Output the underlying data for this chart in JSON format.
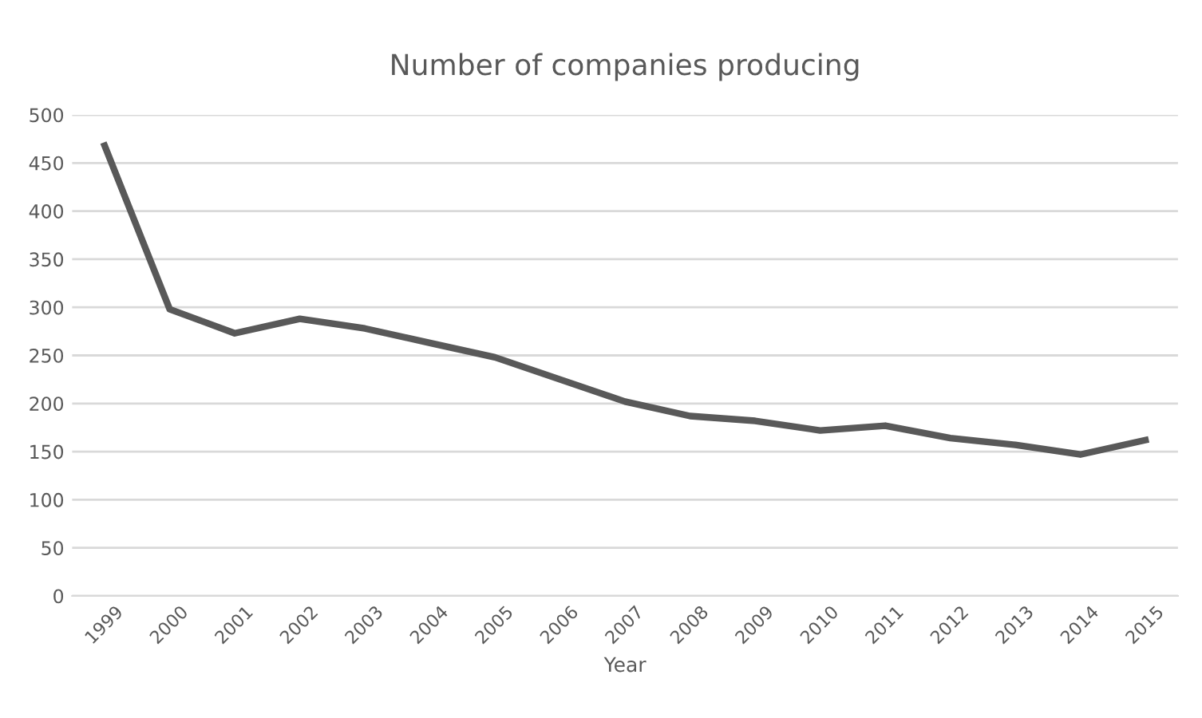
{
  "chart_data": {
    "type": "line",
    "title": "Number of companies producing",
    "xlabel": "Year",
    "categories": [
      "1999",
      "2000",
      "2001",
      "2002",
      "2003",
      "2004",
      "2005",
      "2006",
      "2007",
      "2008",
      "2009",
      "2010",
      "2011",
      "2012",
      "2013",
      "2014",
      "2015"
    ],
    "series": [
      {
        "color": "#595959",
        "values": [
          468,
          298,
          273,
          288,
          278,
          263,
          248,
          225,
          202,
          187,
          182,
          172,
          177,
          164,
          157,
          147,
          162
        ]
      }
    ],
    "ylim": [
      0,
      500
    ],
    "yticks": [
      0,
      50,
      100,
      150,
      200,
      250,
      300,
      350,
      400,
      450,
      500
    ],
    "grid": "y",
    "legend": false,
    "marker": "none",
    "line_style": "solid"
  }
}
